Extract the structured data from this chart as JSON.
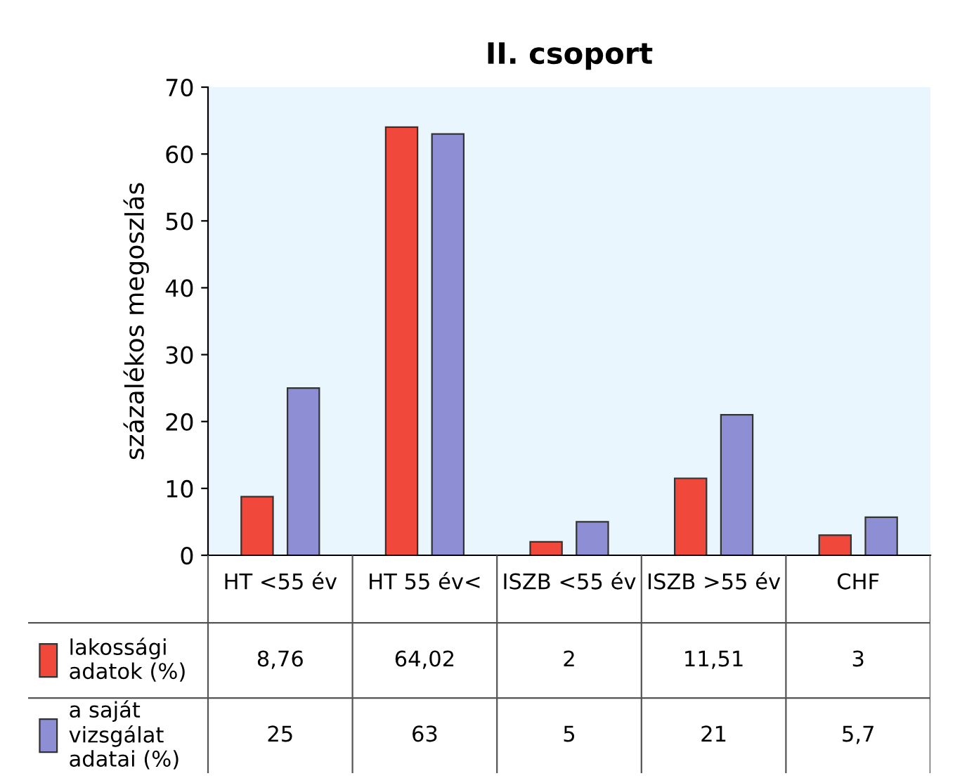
{
  "chart_data": {
    "type": "bar",
    "title": "II. csoport",
    "ylabel": "százalékos megoszlás",
    "categories": [
      "HT <55 év",
      "HT 55 év<",
      "ISZB <55 év",
      "ISZB >55 év",
      "CHF"
    ],
    "series": [
      {
        "name": "lakossági\nadatok (%)",
        "color": "#f0483a",
        "values": [
          8.76,
          64.02,
          2,
          11.51,
          3
        ],
        "value_labels": [
          "8,76",
          "64,02",
          "2",
          "11,51",
          "3"
        ]
      },
      {
        "name": "a saját\nvizsgálat\nadatai (%)",
        "color": "#8e8ed4",
        "values": [
          25,
          63,
          5,
          21,
          5.7
        ],
        "value_labels": [
          "25",
          "63",
          "5",
          "21",
          "5,7"
        ]
      }
    ],
    "ylim": [
      0,
      70
    ],
    "yticks": [
      0,
      10,
      20,
      30,
      40,
      50,
      60,
      70
    ],
    "grid": false,
    "legend": "bottom"
  }
}
